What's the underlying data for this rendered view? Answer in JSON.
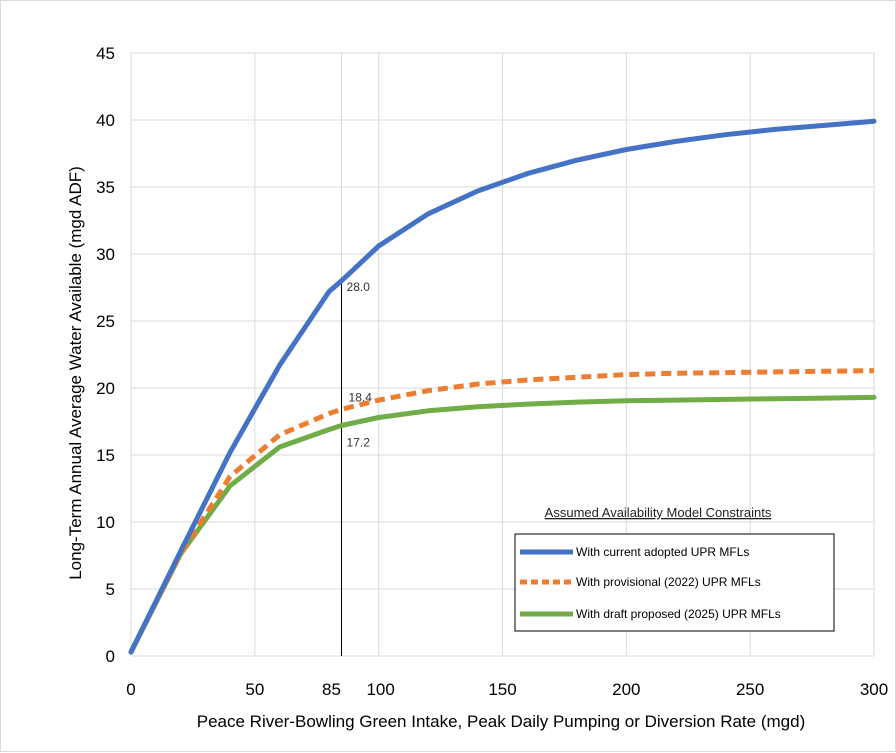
{
  "chart_data": {
    "type": "line",
    "title": "",
    "xlabel": "Peace River-Bowling Green Intake, Peak Daily Pumping or Diversion Rate (mgd)",
    "ylabel": "Long-Term Annual Average Water Available (mgd ADF)",
    "xlim": [
      0,
      300
    ],
    "ylim": [
      0,
      45
    ],
    "x_ticks": [
      0,
      50,
      85,
      100,
      150,
      200,
      250,
      300
    ],
    "y_ticks": [
      0,
      5,
      10,
      15,
      20,
      25,
      30,
      35,
      40,
      45
    ],
    "grid": true,
    "legend_title": "Assumed Availability Model Constraints",
    "legend_position": "bottom-right",
    "series": [
      {
        "name": "With current adopted UPR MFLs",
        "color": "#4472C4",
        "style": "solid",
        "x": [
          0,
          20,
          40,
          60,
          80,
          85,
          100,
          120,
          140,
          160,
          180,
          200,
          220,
          240,
          260,
          280,
          300
        ],
        "y": [
          0.3,
          7.8,
          15.2,
          21.7,
          27.2,
          28.0,
          30.6,
          33.0,
          34.7,
          36.0,
          37.0,
          37.8,
          38.4,
          38.9,
          39.3,
          39.6,
          39.9
        ]
      },
      {
        "name": "With provisional (2022) UPR MFLs",
        "color": "#ED7D31",
        "style": "dashed",
        "x": [
          0,
          20,
          40,
          60,
          80,
          85,
          100,
          120,
          140,
          160,
          180,
          200,
          220,
          240,
          260,
          280,
          300
        ],
        "y": [
          0.3,
          7.6,
          13.4,
          16.5,
          18.1,
          18.4,
          19.1,
          19.8,
          20.3,
          20.6,
          20.8,
          21.0,
          21.1,
          21.15,
          21.2,
          21.25,
          21.3
        ]
      },
      {
        "name": "With draft proposed (2025) UPR MFLs",
        "color": "#70AD47",
        "style": "solid",
        "x": [
          0,
          20,
          40,
          60,
          80,
          85,
          100,
          120,
          140,
          160,
          180,
          200,
          220,
          240,
          260,
          280,
          300
        ],
        "y": [
          0.3,
          7.6,
          12.7,
          15.6,
          16.9,
          17.2,
          17.8,
          18.3,
          18.6,
          18.8,
          18.95,
          19.05,
          19.1,
          19.15,
          19.2,
          19.25,
          19.3
        ]
      }
    ],
    "annotations": [
      {
        "x": 85,
        "y": 28.0,
        "text": "28.0"
      },
      {
        "x": 85,
        "y": 18.4,
        "text": "18.4"
      },
      {
        "x": 85,
        "y": 17.2,
        "text": "17.2"
      }
    ],
    "reference_line": {
      "x": 85,
      "y_from": 0,
      "y_to": 28.0,
      "color": "#000000"
    }
  }
}
